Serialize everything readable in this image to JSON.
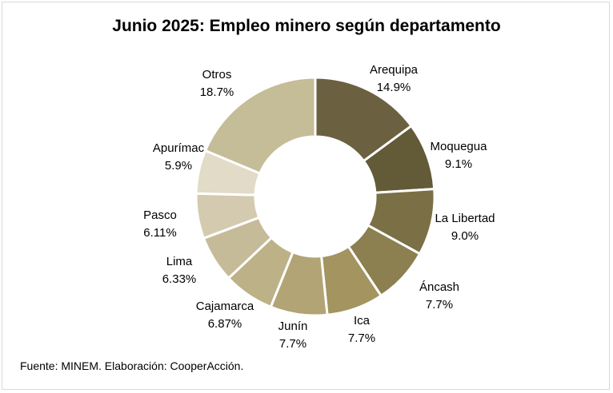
{
  "chart_data": {
    "type": "pie",
    "variant": "donut",
    "title": "Junio 2025: Empleo minero según departamento",
    "source": "Fuente: MINEM. Elaboración: CooperAcción.",
    "slices": [
      {
        "label": "Arequipa",
        "value": 14.9,
        "display": "14.9%",
        "color": "#6b6040"
      },
      {
        "label": "Moquegua",
        "value": 9.1,
        "display": "9.1%",
        "color": "#635a38"
      },
      {
        "label": "La Libertad",
        "value": 9.0,
        "display": "9.0%",
        "color": "#7b6f45"
      },
      {
        "label": "Áncash",
        "value": 7.7,
        "display": "7.7%",
        "color": "#8c7f50"
      },
      {
        "label": "Ica",
        "value": 7.7,
        "display": "7.7%",
        "color": "#a39460"
      },
      {
        "label": "Junín",
        "value": 7.7,
        "display": "7.7%",
        "color": "#b2a474"
      },
      {
        "label": "Cajamarca",
        "value": 6.87,
        "display": "6.87%",
        "color": "#bdb188"
      },
      {
        "label": "Lima",
        "value": 6.33,
        "display": "6.33%",
        "color": "#c6bb98"
      },
      {
        "label": "Pasco",
        "value": 6.11,
        "display": "6.11%",
        "color": "#d3cab0"
      },
      {
        "label": "Apurímac",
        "value": 5.9,
        "display": "5.9%",
        "color": "#e1dbc7"
      },
      {
        "label": "Otros",
        "value": 18.7,
        "display": "18.7%",
        "color": "#c5bc98"
      }
    ]
  }
}
